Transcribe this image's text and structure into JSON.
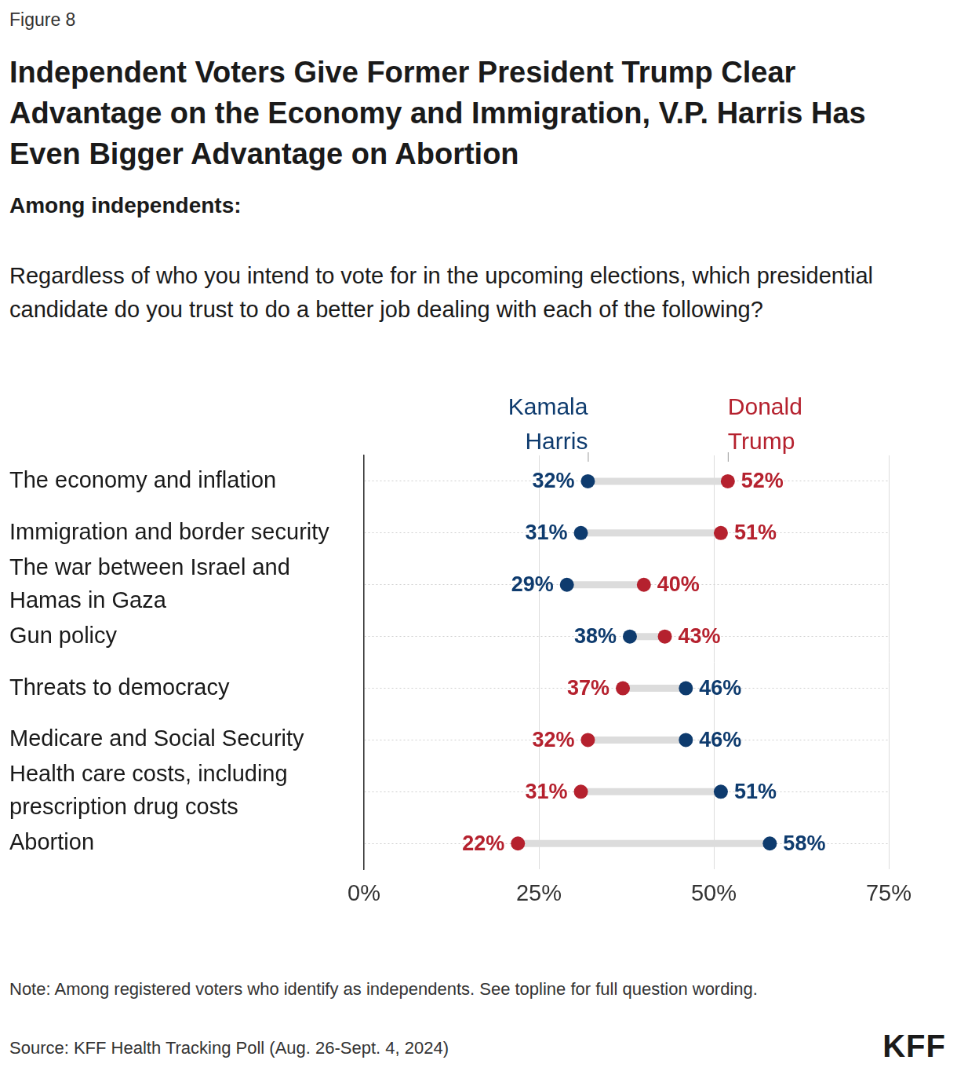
{
  "chart_data": {
    "type": "dumbbell",
    "figure_label": "Figure 8",
    "title": "Independent Voters Give Former President Trump Clear Advantage on the Economy and Immigration, V.P. Harris Has Even Bigger Advantage on Abortion",
    "subtitle": "Among independents:",
    "question": "Regardless of who you intend to vote for in the upcoming elections, which presidential candidate do you trust to do a better job dealing with each of the following?",
    "orientation": "horizontal",
    "categories": [
      "The economy and inflation",
      "Immigration and border security",
      "The war between Israel and Hamas in Gaza",
      "Gun policy",
      "Threats to democracy",
      "Medicare and Social Security",
      "Health care costs, including prescription drug costs",
      "Abortion"
    ],
    "series": [
      {
        "name": "Kamala Harris",
        "color": "#0e3b6e",
        "marker": "circle",
        "values": [
          32,
          31,
          29,
          38,
          46,
          46,
          51,
          58
        ],
        "value_labels": [
          "32%",
          "31%",
          "29%",
          "38%",
          "46%",
          "46%",
          "51%",
          "58%"
        ]
      },
      {
        "name": "Donald Trump",
        "color": "#b5212e",
        "marker": "circle",
        "values": [
          52,
          51,
          40,
          43,
          37,
          32,
          31,
          22
        ],
        "value_labels": [
          "52%",
          "51%",
          "40%",
          "43%",
          "37%",
          "32%",
          "31%",
          "22%"
        ]
      }
    ],
    "xlim": [
      0,
      75
    ],
    "xticks": [
      {
        "value": 0,
        "label": "0%"
      },
      {
        "value": 25,
        "label": "25%"
      },
      {
        "value": 50,
        "label": "50%"
      },
      {
        "value": 75,
        "label": "75%"
      }
    ],
    "grid": true,
    "legend": "top",
    "data_labels": true,
    "note": "Note: Among registered voters who identify as independents. See topline for full question wording.",
    "source": "Source: KFF Health Tracking Poll (Aug. 26-Sept. 4, 2024)",
    "logo": "KFF"
  }
}
